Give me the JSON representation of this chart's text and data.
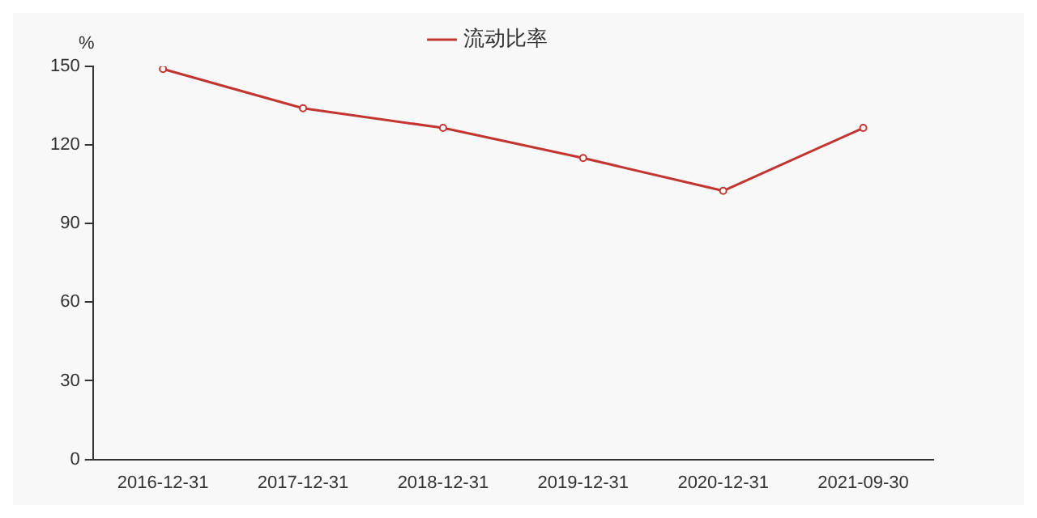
{
  "chart_data": {
    "type": "line",
    "ylabel": "%",
    "categories": [
      "2016-12-31",
      "2017-12-31",
      "2018-12-31",
      "2019-12-31",
      "2020-12-31",
      "2021-09-30"
    ],
    "series": [
      {
        "name": "流动比率",
        "color": "#c23531",
        "values": [
          149,
          134,
          126.5,
          115,
          102.5,
          126.5
        ]
      }
    ],
    "ylim": [
      0,
      150
    ],
    "yticks": [
      0,
      30,
      60,
      90,
      120,
      150
    ],
    "grid": false,
    "legend": "top",
    "marker": "circle",
    "line_style": "solid"
  }
}
